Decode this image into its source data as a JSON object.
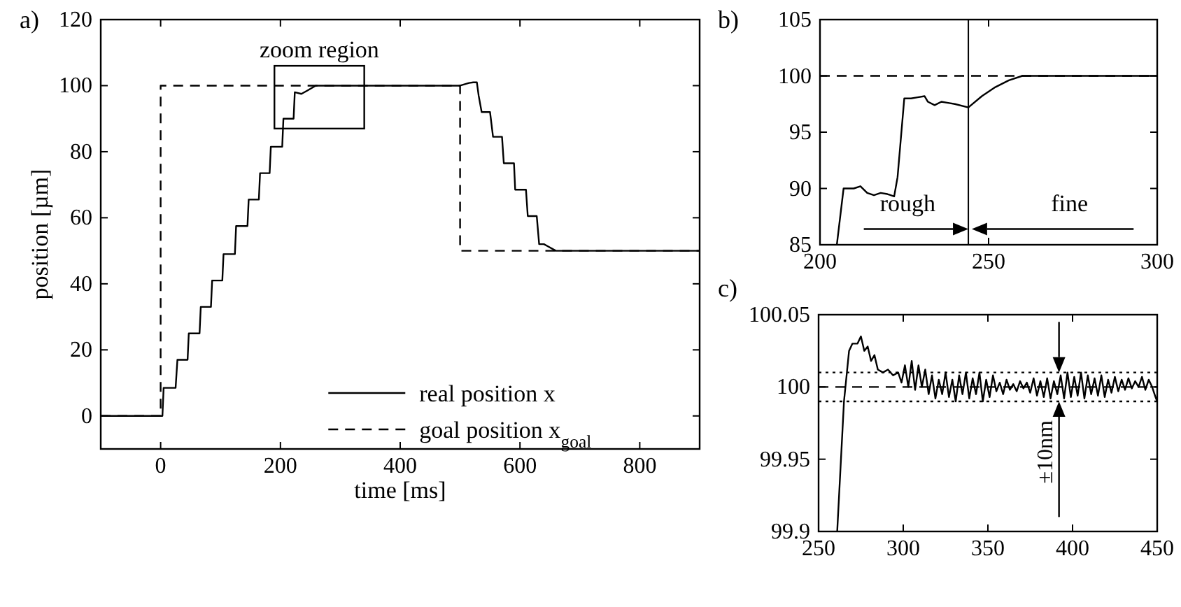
{
  "chart_data": [
    {
      "type": "line",
      "title": "a)",
      "xlabel": "time [ms]",
      "ylabel": "position [µm]",
      "xlim": [
        -100,
        900
      ],
      "xticks": [
        0,
        200,
        400,
        600,
        800
      ],
      "ylim": [
        -10,
        120
      ],
      "yticks": [
        0,
        20,
        40,
        60,
        80,
        100,
        120
      ],
      "grid": false,
      "legend": "bottom right",
      "annotations": [
        "zoom region"
      ],
      "series": [
        {
          "name": "real position x",
          "color": "#000000",
          "line_style": "solid",
          "x": [
            -100,
            3,
            5,
            25,
            28,
            45,
            47,
            65,
            67,
            84,
            86,
            103,
            105,
            124,
            126,
            145,
            147,
            164,
            166,
            182,
            184,
            203,
            205,
            222,
            224,
            235,
            245,
            259,
            300,
            500,
            515,
            522,
            528,
            531,
            536,
            550,
            555,
            570,
            573,
            590,
            592,
            610,
            613,
            628,
            632,
            640,
            645,
            660,
            900
          ],
          "values": [
            0,
            0,
            8.5,
            8.5,
            17,
            17,
            25,
            25,
            33,
            33,
            41,
            41,
            49,
            49,
            57.5,
            57.5,
            65.5,
            65.5,
            73.5,
            73.5,
            81.5,
            81.5,
            90,
            90,
            98,
            97.5,
            98.5,
            100,
            100,
            100,
            100.8,
            101,
            101,
            97,
            92,
            92,
            84.5,
            84.5,
            76.5,
            76.5,
            68.5,
            68.5,
            60.5,
            60.5,
            52,
            52,
            51.5,
            50,
            50
          ]
        },
        {
          "name": "goal position x$_{goal}$",
          "color": "#000000",
          "line_style": "dashed",
          "x": [
            -100,
            0,
            0,
            500,
            500,
            900
          ],
          "values": [
            0,
            0,
            100,
            100,
            50,
            50
          ]
        }
      ]
    },
    {
      "type": "line",
      "title": "b)",
      "xlim": [
        200,
        300
      ],
      "xticks": [
        200,
        250,
        300
      ],
      "ylim": [
        85,
        105
      ],
      "yticks": [
        85,
        90,
        95,
        100,
        105
      ],
      "grid": false,
      "annotations": [
        "rough",
        "fine"
      ],
      "ref_lines": [
        {
          "axis": "x",
          "value": 244,
          "line_style": "solid"
        }
      ],
      "series": [
        {
          "color": "#000000",
          "line_style": "solid",
          "x": [
            205,
            207,
            210,
            212,
            214,
            216,
            218,
            220,
            222,
            223,
            225,
            227,
            229,
            231,
            232,
            234,
            236,
            238,
            240,
            244,
            248,
            252,
            256,
            260,
            300
          ],
          "values": [
            85,
            90,
            90,
            90.2,
            89.6,
            89.4,
            89.6,
            89.5,
            89.3,
            91,
            98,
            98,
            98.1,
            98.2,
            97.7,
            97.4,
            97.7,
            97.6,
            97.5,
            97.2,
            98.2,
            99.0,
            99.6,
            100,
            100
          ]
        },
        {
          "color": "#000000",
          "line_style": "dashed",
          "x": [
            200,
            300
          ],
          "values": [
            100,
            100
          ]
        }
      ]
    },
    {
      "type": "line",
      "title": "c)",
      "xlim": [
        250,
        450
      ],
      "xticks": [
        250,
        300,
        350,
        400,
        450
      ],
      "ylim": [
        99.9,
        100.05
      ],
      "yticks": [
        99.9,
        99.95,
        100,
        100.05
      ],
      "grid": false,
      "annotations": [
        "±10nm"
      ],
      "ref_lines": [
        {
          "axis": "y",
          "value": 100.01,
          "line_style": "dotted"
        },
        {
          "axis": "y",
          "value": 99.99,
          "line_style": "dotted"
        }
      ],
      "series": [
        {
          "color": "#000000",
          "line_style": "dashed",
          "x": [
            250,
            450
          ],
          "values": [
            100,
            100
          ]
        },
        {
          "color": "#000000",
          "line_style": "solid",
          "x": [
            261,
            265,
            268,
            270,
            273,
            275,
            277,
            279,
            281,
            283,
            285,
            288,
            291,
            294,
            297,
            299,
            301,
            303,
            305,
            307,
            309,
            311,
            313,
            315,
            317,
            319,
            321,
            323,
            325,
            327,
            329,
            331,
            333,
            335,
            337,
            339,
            341,
            343,
            345,
            347,
            349,
            351,
            353,
            355,
            357,
            359,
            361,
            363,
            365,
            367,
            369,
            371,
            373,
            375,
            377,
            379,
            381,
            383,
            385,
            387,
            389,
            391,
            393,
            395,
            397,
            399,
            401,
            403,
            405,
            407,
            409,
            411,
            413,
            415,
            417,
            419,
            421,
            423,
            425,
            427,
            429,
            431,
            433,
            435,
            437,
            439,
            441,
            443,
            445,
            447,
            449,
            450
          ],
          "values": [
            99.9,
            99.99,
            100.025,
            100.03,
            100.03,
            100.035,
            100.025,
            100.028,
            100.018,
            100.022,
            100.012,
            100.01,
            100.012,
            100.008,
            100.01,
            100.003,
            100.015,
            100.0,
            100.018,
            99.998,
            100.015,
            100.0,
            100.012,
            99.995,
            100.008,
            99.992,
            100.005,
            99.995,
            100.01,
            99.993,
            100.005,
            99.99,
            100.008,
            99.995,
            100.01,
            99.992,
            100.006,
            99.995,
            100.01,
            99.99,
            100.005,
            99.993,
            100.008,
            99.997,
            100.003,
            99.995,
            100.005,
            99.998,
            100.002,
            99.997,
            100.004,
            99.999,
            100.003,
            99.996,
            100.006,
            99.994,
            100.004,
            99.993,
            100.006,
            99.992,
            100.004,
            99.995,
            100.008,
            99.992,
            100.01,
            99.993,
            100.007,
            99.994,
            100.01,
            99.992,
            100.008,
            99.995,
            100.006,
            99.994,
            100.008,
            99.993,
            100.005,
            99.996,
            100.007,
            99.997,
            100.005,
            99.998,
            100.006,
            99.999,
            100.004,
            100.0,
            100.007,
            99.998,
            100.005,
            100.0,
            99.993,
            99.99
          ]
        }
      ]
    }
  ]
}
